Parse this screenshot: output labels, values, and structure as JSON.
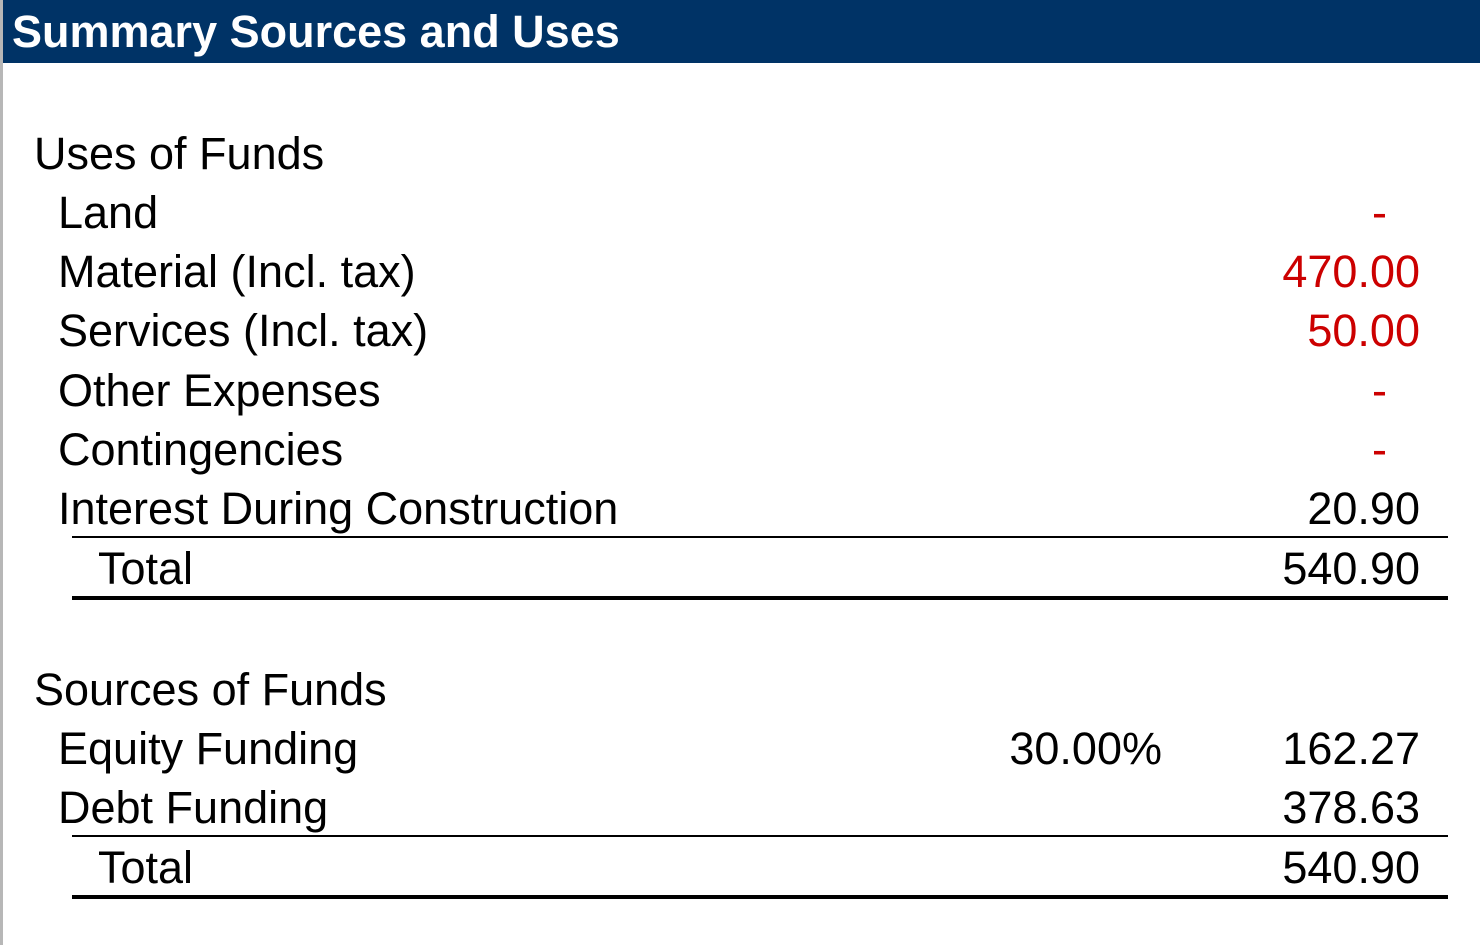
{
  "title": "Summary Sources and Uses",
  "colors": {
    "header_background": "#003366",
    "header_text": "#ffffff",
    "input_value": "#cc0000",
    "calculated_value": "#000000"
  },
  "uses": {
    "heading": "Uses of Funds",
    "items": [
      {
        "label": "Land",
        "value": "-",
        "color": "#cc0000"
      },
      {
        "label": "Material (Incl. tax)",
        "value": "470.00",
        "color": "#cc0000"
      },
      {
        "label": "Services (Incl. tax)",
        "value": "50.00",
        "color": "#cc0000"
      },
      {
        "label": "Other Expenses",
        "value": "-",
        "color": "#cc0000"
      },
      {
        "label": "Contingencies",
        "value": "-",
        "color": "#cc0000"
      },
      {
        "label": "Interest During Construction",
        "value": "20.90",
        "color": "#000000"
      }
    ],
    "total_label": "Total",
    "total_value": "540.90"
  },
  "sources": {
    "heading": "Sources of Funds",
    "items": [
      {
        "label": "Equity Funding",
        "percent": "30.00%",
        "value": "162.27",
        "color": "#000000"
      },
      {
        "label": "Debt Funding",
        "percent": "",
        "value": "378.63",
        "color": "#000000"
      }
    ],
    "total_label": "Total",
    "total_value": "540.90"
  }
}
